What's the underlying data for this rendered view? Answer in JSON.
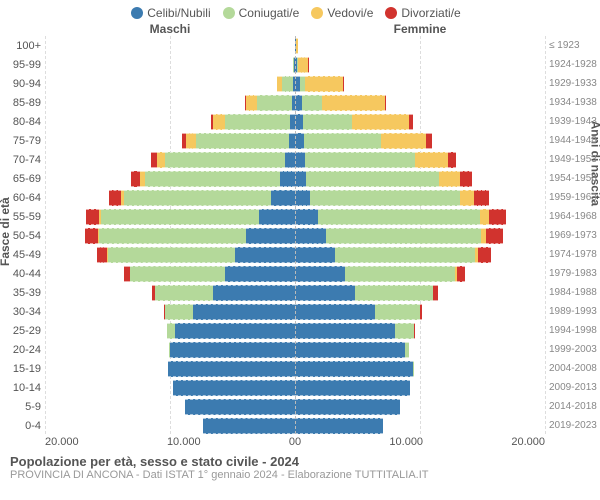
{
  "type": "population-pyramid",
  "legend": [
    {
      "label": "Celibi/Nubili",
      "color": "#3c7bb0"
    },
    {
      "label": "Coniugati/e",
      "color": "#b4d99a"
    },
    {
      "label": "Vedovi/e",
      "color": "#f6c85f"
    },
    {
      "label": "Divorziati/e",
      "color": "#d1332e"
    }
  ],
  "header_left": "Maschi",
  "header_right": "Femmine",
  "yaxis_left_title": "Fasce di età",
  "yaxis_right_title": "Anni di nascita",
  "xmax": 20000,
  "xticks_left": [
    "20.000",
    "10.000",
    "0"
  ],
  "xticks_right": [
    "0",
    "10.000",
    "20.000"
  ],
  "footer_title": "Popolazione per età, sesso e stato civile - 2024",
  "footer_sub": "PROVINCIA DI ANCONA - Dati ISTAT 1° gennaio 2024 - Elaborazione TUTTITALIA.IT",
  "background_color": "#ffffff",
  "grid_color": "#dddddd",
  "label_fontsize": 11,
  "rows": [
    {
      "age": "100+",
      "birth": "≤ 1923",
      "m": {
        "c": 20,
        "k": 0,
        "v": 10,
        "d": 0
      },
      "f": {
        "c": 40,
        "k": 0,
        "v": 180,
        "d": 0
      }
    },
    {
      "age": "95-99",
      "birth": "1924-1928",
      "m": {
        "c": 60,
        "k": 80,
        "v": 60,
        "d": 0
      },
      "f": {
        "c": 180,
        "k": 60,
        "v": 780,
        "d": 10
      }
    },
    {
      "age": "90-94",
      "birth": "1929-1933",
      "m": {
        "c": 140,
        "k": 900,
        "v": 420,
        "d": 20
      },
      "f": {
        "c": 400,
        "k": 400,
        "v": 3000,
        "d": 60
      }
    },
    {
      "age": "85-89",
      "birth": "1934-1938",
      "m": {
        "c": 260,
        "k": 2800,
        "v": 900,
        "d": 60
      },
      "f": {
        "c": 560,
        "k": 1600,
        "v": 5000,
        "d": 140
      }
    },
    {
      "age": "80-84",
      "birth": "1939-1943",
      "m": {
        "c": 400,
        "k": 5200,
        "v": 1000,
        "d": 160
      },
      "f": {
        "c": 640,
        "k": 3900,
        "v": 4600,
        "d": 300
      }
    },
    {
      "age": "75-79",
      "birth": "1944-1948",
      "m": {
        "c": 520,
        "k": 7400,
        "v": 800,
        "d": 300
      },
      "f": {
        "c": 700,
        "k": 6200,
        "v": 3600,
        "d": 440
      }
    },
    {
      "age": "70-74",
      "birth": "1949-1953",
      "m": {
        "c": 800,
        "k": 9600,
        "v": 640,
        "d": 520
      },
      "f": {
        "c": 800,
        "k": 8800,
        "v": 2600,
        "d": 680
      }
    },
    {
      "age": "65-69",
      "birth": "1954-1958",
      "m": {
        "c": 1200,
        "k": 10800,
        "v": 400,
        "d": 760
      },
      "f": {
        "c": 900,
        "k": 10600,
        "v": 1700,
        "d": 960
      }
    },
    {
      "age": "60-64",
      "birth": "1959-1963",
      "m": {
        "c": 1900,
        "k": 11800,
        "v": 260,
        "d": 940
      },
      "f": {
        "c": 1200,
        "k": 12000,
        "v": 1100,
        "d": 1200
      }
    },
    {
      "age": "55-59",
      "birth": "1964-1968",
      "m": {
        "c": 2900,
        "k": 12600,
        "v": 160,
        "d": 1060
      },
      "f": {
        "c": 1800,
        "k": 13000,
        "v": 700,
        "d": 1400
      }
    },
    {
      "age": "50-54",
      "birth": "1969-1973",
      "m": {
        "c": 3900,
        "k": 11800,
        "v": 100,
        "d": 1000
      },
      "f": {
        "c": 2500,
        "k": 12400,
        "v": 400,
        "d": 1300
      }
    },
    {
      "age": "45-49",
      "birth": "1974-1978",
      "m": {
        "c": 4800,
        "k": 10200,
        "v": 60,
        "d": 760
      },
      "f": {
        "c": 3200,
        "k": 11200,
        "v": 240,
        "d": 1060
      }
    },
    {
      "age": "40-44",
      "birth": "1979-1983",
      "m": {
        "c": 5600,
        "k": 7600,
        "v": 30,
        "d": 460
      },
      "f": {
        "c": 4000,
        "k": 8800,
        "v": 120,
        "d": 680
      }
    },
    {
      "age": "35-39",
      "birth": "1984-1988",
      "m": {
        "c": 6600,
        "k": 4600,
        "v": 10,
        "d": 200
      },
      "f": {
        "c": 4800,
        "k": 6200,
        "v": 60,
        "d": 360
      }
    },
    {
      "age": "30-34",
      "birth": "1989-1993",
      "m": {
        "c": 8200,
        "k": 2200,
        "v": 0,
        "d": 70
      },
      "f": {
        "c": 6400,
        "k": 3600,
        "v": 20,
        "d": 140
      }
    },
    {
      "age": "25-29",
      "birth": "1994-1998",
      "m": {
        "c": 9600,
        "k": 640,
        "v": 0,
        "d": 10
      },
      "f": {
        "c": 8000,
        "k": 1500,
        "v": 0,
        "d": 40
      }
    },
    {
      "age": "20-24",
      "birth": "1999-2003",
      "m": {
        "c": 10000,
        "k": 80,
        "v": 0,
        "d": 0
      },
      "f": {
        "c": 8800,
        "k": 340,
        "v": 0,
        "d": 0
      }
    },
    {
      "age": "15-19",
      "birth": "2004-2008",
      "m": {
        "c": 10200,
        "k": 0,
        "v": 0,
        "d": 0
      },
      "f": {
        "c": 9400,
        "k": 20,
        "v": 0,
        "d": 0
      }
    },
    {
      "age": "10-14",
      "birth": "2009-2013",
      "m": {
        "c": 9800,
        "k": 0,
        "v": 0,
        "d": 0
      },
      "f": {
        "c": 9200,
        "k": 0,
        "v": 0,
        "d": 0
      }
    },
    {
      "age": "5-9",
      "birth": "2014-2018",
      "m": {
        "c": 8800,
        "k": 0,
        "v": 0,
        "d": 0
      },
      "f": {
        "c": 8400,
        "k": 0,
        "v": 0,
        "d": 0
      }
    },
    {
      "age": "0-4",
      "birth": "2019-2023",
      "m": {
        "c": 7400,
        "k": 0,
        "v": 0,
        "d": 0
      },
      "f": {
        "c": 7000,
        "k": 0,
        "v": 0,
        "d": 0
      }
    }
  ]
}
